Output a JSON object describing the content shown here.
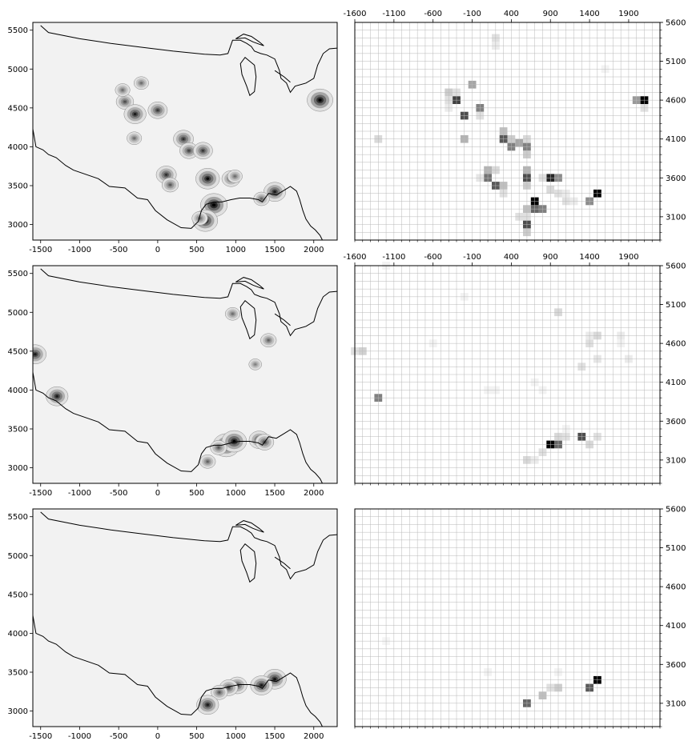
{
  "figure": {
    "rows": 3,
    "cols": 2
  },
  "colors": {
    "frame": "#000000",
    "grid": "#b8b8b8",
    "coastline": "#000000",
    "map_background": "#f2f2f2",
    "cell_max": "#000000",
    "cell_min": "#ffffff"
  },
  "chart_data": [
    {
      "panel": "row1-density-map",
      "type": "heatmap",
      "style": "kde-contour-map",
      "xlim": [
        -1600,
        2300
      ],
      "ylim": [
        2800,
        5600
      ],
      "xticks": [
        "-1500",
        "-1000",
        "-500",
        "0",
        "500",
        "1000",
        "1500",
        "2000"
      ],
      "yticks": [
        "3000",
        "3500",
        "4000",
        "4500",
        "5000",
        "5500"
      ],
      "hotspots": [
        {
          "x": 2080,
          "y": 4600,
          "w": 0.9
        },
        {
          "x": 720,
          "y": 3250,
          "w": 0.95
        },
        {
          "x": 610,
          "y": 3050,
          "w": 0.85
        },
        {
          "x": 1500,
          "y": 3420,
          "w": 0.7
        },
        {
          "x": 640,
          "y": 3590,
          "w": 0.8
        },
        {
          "x": 110,
          "y": 3640,
          "w": 0.6
        },
        {
          "x": 940,
          "y": 3590,
          "w": 0.5
        },
        {
          "x": 330,
          "y": 4100,
          "w": 0.6
        },
        {
          "x": 400,
          "y": 3950,
          "w": 0.5
        },
        {
          "x": 580,
          "y": 3950,
          "w": 0.55
        },
        {
          "x": -420,
          "y": 4580,
          "w": 0.45
        },
        {
          "x": -290,
          "y": 4420,
          "w": 0.7
        },
        {
          "x": 0,
          "y": 4470,
          "w": 0.55
        },
        {
          "x": 160,
          "y": 3510,
          "w": 0.4
        },
        {
          "x": -450,
          "y": 4730,
          "w": 0.3
        },
        {
          "x": -210,
          "y": 4820,
          "w": 0.3
        },
        {
          "x": -300,
          "y": 4110,
          "w": 0.3
        },
        {
          "x": 1330,
          "y": 3330,
          "w": 0.35
        },
        {
          "x": 990,
          "y": 3620,
          "w": 0.3
        },
        {
          "x": 540,
          "y": 3080,
          "w": 0.35
        }
      ]
    },
    {
      "panel": "row1-grid-heatmap",
      "type": "heatmap",
      "style": "binned-grid",
      "xlim": [
        -1600,
        2300
      ],
      "ylim": [
        2800,
        5600
      ],
      "bin_size": 100,
      "xticks": [
        "-1600",
        "-1100",
        "-600",
        "-100",
        "400",
        "900",
        "1400",
        "1900"
      ],
      "yticks": [
        "3100",
        "3600",
        "4100",
        "4600",
        "5100",
        "5600"
      ],
      "cells": [
        {
          "x": 200,
          "y": 5400,
          "v": 0.12
        },
        {
          "x": 200,
          "y": 5300,
          "v": 0.08
        },
        {
          "x": 2100,
          "y": 4600,
          "v": 1.0
        },
        {
          "x": 2000,
          "y": 4600,
          "v": 0.4
        },
        {
          "x": 2100,
          "y": 4500,
          "v": 0.12
        },
        {
          "x": -100,
          "y": 4800,
          "v": 0.35
        },
        {
          "x": -400,
          "y": 4700,
          "v": 0.2
        },
        {
          "x": -300,
          "y": 4700,
          "v": 0.12
        },
        {
          "x": -300,
          "y": 4600,
          "v": 0.75
        },
        {
          "x": -400,
          "y": 4600,
          "v": 0.12
        },
        {
          "x": -400,
          "y": 4500,
          "v": 0.08
        },
        {
          "x": 0,
          "y": 4500,
          "v": 0.5
        },
        {
          "x": -200,
          "y": 4400,
          "v": 0.7
        },
        {
          "x": 0,
          "y": 4400,
          "v": 0.12
        },
        {
          "x": -1300,
          "y": 4100,
          "v": 0.15
        },
        {
          "x": -200,
          "y": 4100,
          "v": 0.3
        },
        {
          "x": 300,
          "y": 4200,
          "v": 0.25
        },
        {
          "x": 300,
          "y": 4100,
          "v": 0.65
        },
        {
          "x": 400,
          "y": 4000,
          "v": 0.5
        },
        {
          "x": 500,
          "y": 4050,
          "v": 0.35
        },
        {
          "x": 600,
          "y": 4000,
          "v": 0.5
        },
        {
          "x": 600,
          "y": 4100,
          "v": 0.15
        },
        {
          "x": 600,
          "y": 3900,
          "v": 0.2
        },
        {
          "x": 400,
          "y": 4100,
          "v": 0.2
        },
        {
          "x": 200,
          "y": 3700,
          "v": 0.15
        },
        {
          "x": 100,
          "y": 3700,
          "v": 0.3
        },
        {
          "x": 100,
          "y": 3600,
          "v": 0.55
        },
        {
          "x": 200,
          "y": 3500,
          "v": 0.65
        },
        {
          "x": 300,
          "y": 3500,
          "v": 0.25
        },
        {
          "x": 0,
          "y": 3600,
          "v": 0.1
        },
        {
          "x": 300,
          "y": 3400,
          "v": 0.12
        },
        {
          "x": 600,
          "y": 3700,
          "v": 0.3
        },
        {
          "x": 600,
          "y": 3600,
          "v": 0.7
        },
        {
          "x": 600,
          "y": 3500,
          "v": 0.2
        },
        {
          "x": 900,
          "y": 3600,
          "v": 0.85
        },
        {
          "x": 1000,
          "y": 3600,
          "v": 0.45
        },
        {
          "x": 800,
          "y": 3600,
          "v": 0.12
        },
        {
          "x": 900,
          "y": 3450,
          "v": 0.15
        },
        {
          "x": 1000,
          "y": 3400,
          "v": 0.12
        },
        {
          "x": 700,
          "y": 3300,
          "v": 1.0
        },
        {
          "x": 700,
          "y": 3200,
          "v": 0.6
        },
        {
          "x": 800,
          "y": 3200,
          "v": 0.5
        },
        {
          "x": 600,
          "y": 3200,
          "v": 0.25
        },
        {
          "x": 600,
          "y": 3100,
          "v": 0.12
        },
        {
          "x": 500,
          "y": 3100,
          "v": 0.12
        },
        {
          "x": 600,
          "y": 3000,
          "v": 0.7
        },
        {
          "x": 600,
          "y": 2900,
          "v": 0.2
        },
        {
          "x": 1500,
          "y": 3400,
          "v": 1.0
        },
        {
          "x": 1400,
          "y": 3300,
          "v": 0.45
        },
        {
          "x": 1100,
          "y": 3300,
          "v": 0.12
        },
        {
          "x": 1200,
          "y": 3300,
          "v": 0.08
        },
        {
          "x": 1100,
          "y": 3400,
          "v": 0.08
        },
        {
          "x": 1600,
          "y": 5000,
          "v": 0.05
        }
      ]
    },
    {
      "panel": "row2-density-map",
      "type": "heatmap",
      "style": "kde-contour-map",
      "xlim": [
        -1600,
        2300
      ],
      "ylim": [
        2800,
        5600
      ],
      "xticks": [
        "-1500",
        "-1000",
        "-500",
        "0",
        "500",
        "1000",
        "1500",
        "2000"
      ],
      "yticks": [
        "3000",
        "3500",
        "4000",
        "4500",
        "5000",
        "5500"
      ],
      "hotspots": [
        {
          "x": -1570,
          "y": 4460,
          "w": 0.7
        },
        {
          "x": -1290,
          "y": 3920,
          "w": 0.7
        },
        {
          "x": 880,
          "y": 3290,
          "w": 0.95
        },
        {
          "x": 980,
          "y": 3340,
          "w": 0.85
        },
        {
          "x": 1300,
          "y": 3360,
          "w": 0.6
        },
        {
          "x": 1370,
          "y": 3330,
          "w": 0.5
        },
        {
          "x": 640,
          "y": 3080,
          "w": 0.35
        },
        {
          "x": 960,
          "y": 4980,
          "w": 0.3
        },
        {
          "x": 1420,
          "y": 4640,
          "w": 0.35
        },
        {
          "x": 1250,
          "y": 4330,
          "w": 0.2
        },
        {
          "x": 780,
          "y": 3260,
          "w": 0.4
        }
      ]
    },
    {
      "panel": "row2-grid-heatmap",
      "type": "heatmap",
      "style": "binned-grid",
      "xlim": [
        -1600,
        2300
      ],
      "ylim": [
        2800,
        5600
      ],
      "bin_size": 100,
      "xticks": [
        "-1600",
        "-1100",
        "-600",
        "-100",
        "400",
        "900",
        "1400",
        "1900"
      ],
      "yticks": [
        "3100",
        "3600",
        "4100",
        "4600",
        "5100",
        "5600"
      ],
      "cells": [
        {
          "x": -1600,
          "y": 4500,
          "v": 0.12
        },
        {
          "x": -1500,
          "y": 4500,
          "v": 0.18
        },
        {
          "x": -1300,
          "y": 3900,
          "v": 0.5
        },
        {
          "x": -1200,
          "y": 5600,
          "v": 0.05
        },
        {
          "x": -200,
          "y": 5200,
          "v": 0.05
        },
        {
          "x": -600,
          "y": 4600,
          "v": 0.05
        },
        {
          "x": 1000,
          "y": 5000,
          "v": 0.15
        },
        {
          "x": 1500,
          "y": 4700,
          "v": 0.15
        },
        {
          "x": 1400,
          "y": 4600,
          "v": 0.12
        },
        {
          "x": 1400,
          "y": 4700,
          "v": 0.08
        },
        {
          "x": 1500,
          "y": 4400,
          "v": 0.1
        },
        {
          "x": 1300,
          "y": 4300,
          "v": 0.12
        },
        {
          "x": 1900,
          "y": 4400,
          "v": 0.08
        },
        {
          "x": 1800,
          "y": 4700,
          "v": 0.08
        },
        {
          "x": 1800,
          "y": 4600,
          "v": 0.05
        },
        {
          "x": 100,
          "y": 4000,
          "v": 0.05
        },
        {
          "x": 200,
          "y": 4000,
          "v": 0.05
        },
        {
          "x": 700,
          "y": 4100,
          "v": 0.05
        },
        {
          "x": 800,
          "y": 4000,
          "v": 0.05
        },
        {
          "x": 900,
          "y": 3300,
          "v": 1.0
        },
        {
          "x": 1000,
          "y": 3300,
          "v": 0.6
        },
        {
          "x": 1000,
          "y": 3400,
          "v": 0.15
        },
        {
          "x": 1100,
          "y": 3400,
          "v": 0.12
        },
        {
          "x": 1300,
          "y": 3400,
          "v": 0.7
        },
        {
          "x": 1400,
          "y": 3300,
          "v": 0.15
        },
        {
          "x": 1500,
          "y": 3400,
          "v": 0.12
        },
        {
          "x": 800,
          "y": 3200,
          "v": 0.12
        },
        {
          "x": 600,
          "y": 3100,
          "v": 0.15
        },
        {
          "x": 700,
          "y": 3100,
          "v": 0.08
        },
        {
          "x": 1100,
          "y": 3500,
          "v": 0.05
        }
      ]
    },
    {
      "panel": "row3-density-map",
      "type": "heatmap",
      "style": "kde-contour-map",
      "xlim": [
        -1600,
        2300
      ],
      "ylim": [
        2800,
        5600
      ],
      "xticks": [
        "-1500",
        "-1000",
        "-500",
        "0",
        "500",
        "1000",
        "1500",
        "2000"
      ],
      "yticks": [
        "3000",
        "3500",
        "4000",
        "4500",
        "5000",
        "5500"
      ],
      "hotspots": [
        {
          "x": 1500,
          "y": 3410,
          "w": 0.75
        },
        {
          "x": 1330,
          "y": 3330,
          "w": 0.7
        },
        {
          "x": 1020,
          "y": 3330,
          "w": 0.55
        },
        {
          "x": 910,
          "y": 3300,
          "w": 0.5
        },
        {
          "x": 790,
          "y": 3240,
          "w": 0.4
        },
        {
          "x": 640,
          "y": 3080,
          "w": 0.7
        }
      ]
    },
    {
      "panel": "row3-grid-heatmap",
      "type": "heatmap",
      "style": "binned-grid",
      "xlim": [
        -1600,
        2300
      ],
      "ylim": [
        2800,
        5600
      ],
      "bin_size": 100,
      "xticks": [],
      "yticks": [
        "3100",
        "3600",
        "4100",
        "4600",
        "5100",
        "5600"
      ],
      "cells": [
        {
          "x": 1500,
          "y": 3400,
          "v": 1.0
        },
        {
          "x": 1400,
          "y": 3300,
          "v": 0.65
        },
        {
          "x": 1000,
          "y": 3300,
          "v": 0.2
        },
        {
          "x": 900,
          "y": 3300,
          "v": 0.12
        },
        {
          "x": 800,
          "y": 3200,
          "v": 0.25
        },
        {
          "x": 600,
          "y": 3100,
          "v": 0.6
        },
        {
          "x": 1000,
          "y": 3500,
          "v": 0.05
        },
        {
          "x": 100,
          "y": 3500,
          "v": 0.05
        },
        {
          "x": -1200,
          "y": 3900,
          "v": 0.04
        }
      ]
    }
  ]
}
